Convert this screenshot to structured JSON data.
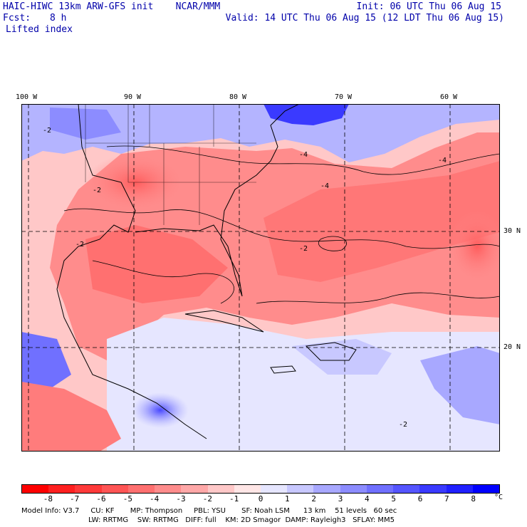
{
  "header": {
    "title": "HAIC-HIWC 13km ARW-GFS init    NCAR/MMM",
    "fcst_label": "Fcst:",
    "fcst_value": "8 h",
    "field": "Lifted index",
    "init": "Init: 06 UTC Thu 06 Aug 15",
    "valid": "Valid: 14 UTC Thu 06 Aug 15 (12 LDT Thu 06 Aug 15)"
  },
  "map": {
    "lon_labels": [
      "100 W",
      "90 W",
      "80 W",
      "70 W",
      "60 W"
    ],
    "lat_labels": [
      "30 N",
      "20 N"
    ],
    "contour_labels": [
      "-2",
      "-4"
    ]
  },
  "colorbar": {
    "ticks": [
      "-8",
      "-7",
      "-6",
      "-5",
      "-4",
      "-3",
      "-2",
      "-1",
      "0",
      "1",
      "2",
      "3",
      "4",
      "5",
      "6",
      "7",
      "8"
    ],
    "unit": "°C",
    "colors": [
      "#ff0000",
      "#ff2020",
      "#ff3a3a",
      "#ff5555",
      "#ff7070",
      "#ff8c8c",
      "#ffa8a8",
      "#ffc8c8",
      "#ffe6e6",
      "#e6e6ff",
      "#c8c8ff",
      "#a8a8ff",
      "#8c8cff",
      "#7070ff",
      "#5555ff",
      "#3a3aff",
      "#2020ff",
      "#0000ff"
    ]
  },
  "model_info": {
    "line1": "Model Info: V3.7     CU: KF       MP: Thompson     PBL: YSU       SF: Noah LSM      13 km    51 levels   60 sec",
    "line2": "LW: RRTMG    SW: RRTMG   DIFF: full    KM: 2D Smagor  DAMP: Rayleigh3   SFLAY: MM5"
  }
}
